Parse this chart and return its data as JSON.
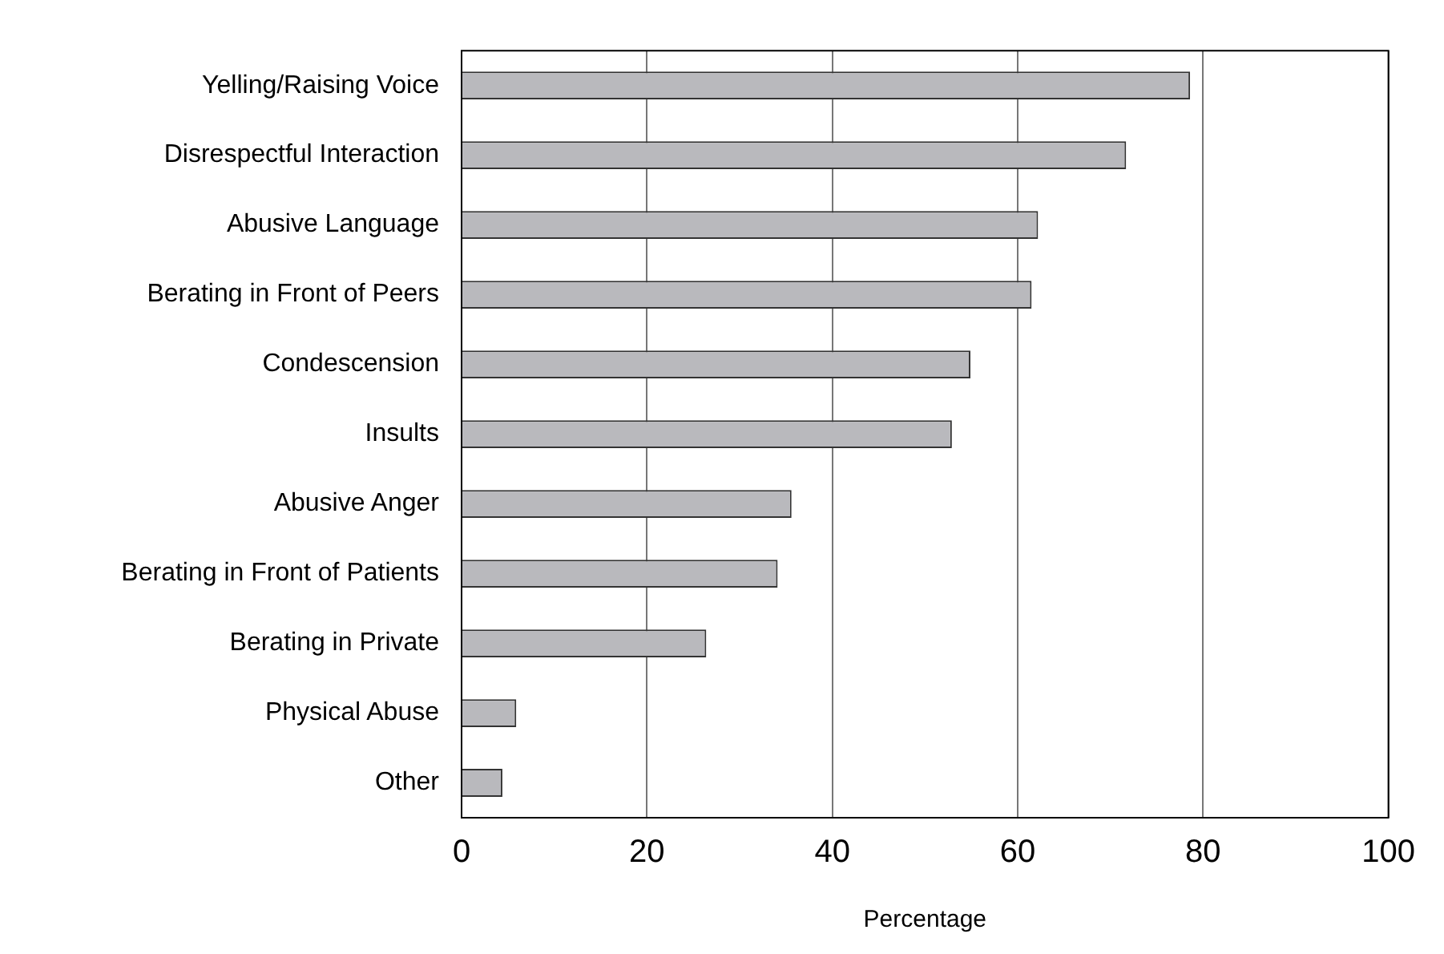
{
  "chart_data": {
    "type": "bar",
    "orientation": "horizontal",
    "xlabel": "Percentage",
    "categories": [
      "Yelling/Raising Voice",
      "Disrespectful Interaction",
      "Abusive Language",
      "Berating in Front of Peers",
      "Condescension",
      "Insults",
      "Abusive Anger",
      "Berating in Front of Patients",
      "Berating in Private",
      "Physical Abuse",
      "Other"
    ],
    "values": [
      78.6,
      71.7,
      62.2,
      61.5,
      54.9,
      52.9,
      35.6,
      34.1,
      26.4,
      5.9,
      4.4
    ],
    "color": "#b9b9bd",
    "xlim": [
      0,
      100
    ],
    "xticks": [
      0,
      20,
      40,
      60,
      80,
      100
    ],
    "grid": "x",
    "legend": false
  }
}
